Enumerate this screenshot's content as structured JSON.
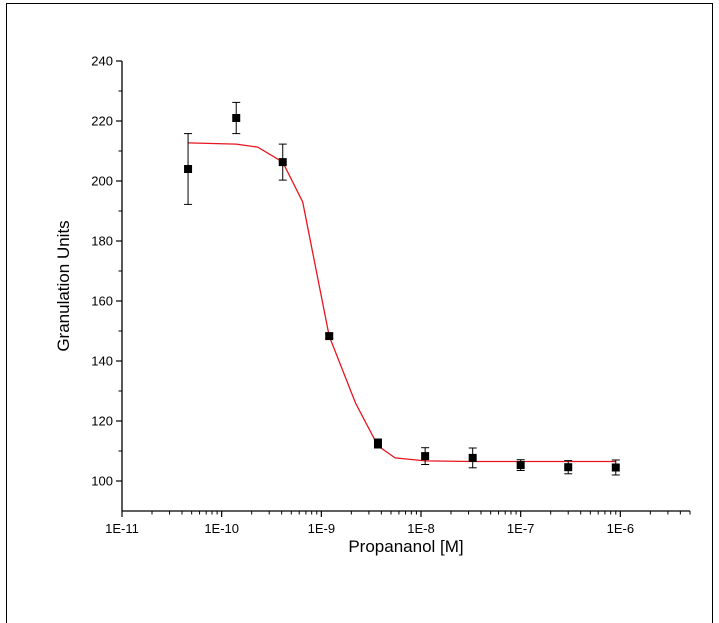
{
  "chart_data": {
    "type": "scatter",
    "xlabel": "Propananol [M]",
    "ylabel": "Granulation Units",
    "x_scale": "log",
    "xlim": [
      1e-11,
      5e-06
    ],
    "ylim": [
      90,
      240
    ],
    "x_ticks": [
      {
        "value": 1e-11,
        "label": "1E-11"
      },
      {
        "value": 1e-10,
        "label": "1E-10"
      },
      {
        "value": 1e-09,
        "label": "1E-9"
      },
      {
        "value": 1e-08,
        "label": "1E-8"
      },
      {
        "value": 1e-07,
        "label": "1E-7"
      },
      {
        "value": 1e-06,
        "label": "1E-6"
      }
    ],
    "y_ticks": [
      {
        "value": 100,
        "label": "100"
      },
      {
        "value": 120,
        "label": "120"
      },
      {
        "value": 140,
        "label": "140"
      },
      {
        "value": 160,
        "label": "160"
      },
      {
        "value": 180,
        "label": "180"
      },
      {
        "value": 200,
        "label": "200"
      },
      {
        "value": 220,
        "label": "220"
      },
      {
        "value": 240,
        "label": "240"
      }
    ],
    "grid": false,
    "points": [
      {
        "x": 4.6e-11,
        "y": 204,
        "err": 11.8
      },
      {
        "x": 1.4e-10,
        "y": 221,
        "err": 5.2
      },
      {
        "x": 4.1e-10,
        "y": 206.3,
        "err": 6
      },
      {
        "x": 1.2e-09,
        "y": 148.3,
        "err": 0.8
      },
      {
        "x": 3.7e-09,
        "y": 112.5,
        "err": 1.5
      },
      {
        "x": 1.1e-08,
        "y": 108.3,
        "err": 2.8
      },
      {
        "x": 3.3e-08,
        "y": 107.7,
        "err": 3.3
      },
      {
        "x": 1e-07,
        "y": 105.3,
        "err": 1.8
      },
      {
        "x": 3e-07,
        "y": 104.6,
        "err": 2.2
      },
      {
        "x": 9e-07,
        "y": 104.5,
        "err": 2.5
      }
    ],
    "fit_curve": [
      {
        "x": 4.6e-11,
        "y": 212.7
      },
      {
        "x": 1.4e-10,
        "y": 212.3
      },
      {
        "x": 2.3e-10,
        "y": 211.3
      },
      {
        "x": 4.1e-10,
        "y": 206.3
      },
      {
        "x": 6.5e-10,
        "y": 193
      },
      {
        "x": 1.2e-09,
        "y": 148.3
      },
      {
        "x": 2.2e-09,
        "y": 126
      },
      {
        "x": 3.7e-09,
        "y": 111.7
      },
      {
        "x": 5.5e-09,
        "y": 107.7
      },
      {
        "x": 1.1e-08,
        "y": 106.7
      },
      {
        "x": 3.3e-08,
        "y": 106.5
      },
      {
        "x": 1e-07,
        "y": 106.5
      },
      {
        "x": 3e-07,
        "y": 106.5
      },
      {
        "x": 9e-07,
        "y": 106.5
      }
    ],
    "colors": {
      "points": "#000000",
      "fit": "#e8141e",
      "axis": "#000000"
    }
  }
}
